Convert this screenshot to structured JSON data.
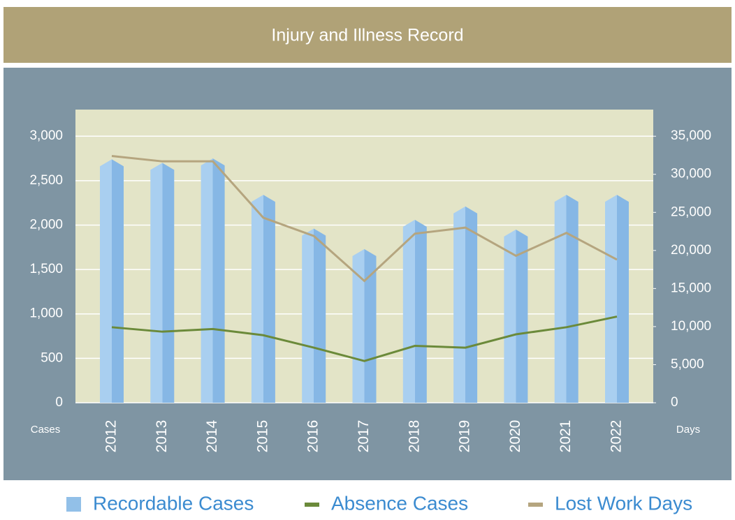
{
  "chart_data": {
    "type": "bar-line",
    "title": "Injury and Illness Record",
    "y_label": "Cases",
    "y2_label": "Days",
    "categories": [
      "2012",
      "2013",
      "2014",
      "2015",
      "2016",
      "2017",
      "2018",
      "2019",
      "2020",
      "2021",
      "2022"
    ],
    "series": [
      {
        "name": "Recordable Cases",
        "type": "bar",
        "color": "#92c0e8",
        "values": [
          2740,
          2700,
          2750,
          2340,
          1960,
          1730,
          2060,
          2210,
          1950,
          2340,
          2340
        ]
      },
      {
        "name": "Absence Cases",
        "type": "line",
        "color": "#6b8a3a",
        "values": [
          850,
          800,
          830,
          760,
          620,
          470,
          640,
          620,
          770,
          850,
          970
        ]
      },
      {
        "name": "Lost Work Days",
        "type": "line",
        "axis": "y2",
        "color": "#b5a57f",
        "values": [
          32400,
          31700,
          31700,
          24300,
          21900,
          16000,
          22200,
          23000,
          19300,
          22300,
          18800
        ]
      }
    ],
    "ylim": [
      0,
      3300
    ],
    "yticks": [
      0,
      500,
      {
        "value": 1000,
        "label": "1,000"
      },
      {
        "value": 1500,
        "label": "1,500"
      },
      {
        "value": 2000,
        "label": "2,000"
      },
      {
        "value": 2500,
        "label": "2,500"
      },
      {
        "value": 3000,
        "label": "3,000"
      }
    ],
    "y2lim": [
      0,
      38500
    ],
    "y2ticks": [
      0,
      {
        "value": 5000,
        "label": "5,000"
      },
      {
        "value": 10000,
        "label": "10,000"
      },
      {
        "value": 15000,
        "label": "15,000"
      },
      {
        "value": 20000,
        "label": "20,000"
      },
      {
        "value": 25000,
        "label": "25,000"
      },
      {
        "value": 30000,
        "label": "30,000"
      },
      {
        "value": 35000,
        "label": "35,000"
      }
    ],
    "grid": true
  }
}
